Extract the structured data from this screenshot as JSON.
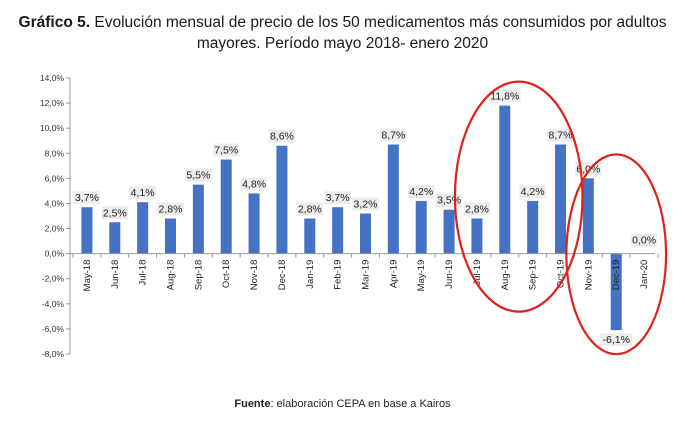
{
  "title_prefix": "Gráfico 5.",
  "title_line1": "Evolución mensual de precio de los 50 medicamentos más consumidos por adultos",
  "title_line2": "mayores. Período mayo 2018- enero 2020",
  "source_prefix": "Fuente",
  "source_text": ": elaboración CEPA en base a Kairos",
  "colors": {
    "bar": "#4472C4",
    "highlight": "#e0201b",
    "label_bg": "#ececec"
  },
  "chart_data": {
    "type": "bar",
    "categories": [
      "May-18",
      "Jun-18",
      "Jul-18",
      "Aug-18",
      "Sep-18",
      "Oct-18",
      "Nov-18",
      "Dec-18",
      "Jan-19",
      "Feb-19",
      "Mar-19",
      "Apr-19",
      "May-19",
      "Jun-19",
      "Jul-19",
      "Aug-19",
      "Sep-19",
      "Oct-19",
      "Nov-19",
      "Dec-19",
      "Jan-20"
    ],
    "values": [
      3.7,
      2.5,
      4.1,
      2.8,
      5.5,
      7.5,
      4.8,
      8.6,
      2.8,
      3.7,
      3.2,
      8.7,
      4.2,
      3.5,
      2.8,
      11.8,
      4.2,
      8.7,
      6.0,
      -6.1,
      0.0
    ],
    "data_labels": [
      "3,7%",
      "2,5%",
      "4,1%",
      "2,8%",
      "5,5%",
      "7,5%",
      "4,8%",
      "8,6%",
      "2,8%",
      "3,7%",
      "3,2%",
      "8,7%",
      "4,2%",
      "3,5%",
      "2,8%",
      "11,8%",
      "4,2%",
      "8,7%",
      "6,0%",
      "-6,1%",
      "0,0%"
    ],
    "yticks": [
      14,
      12,
      10,
      8,
      6,
      4,
      2,
      0,
      -2,
      -4,
      -6,
      -8
    ],
    "ytick_labels": [
      "14,0%",
      "12,0%",
      "10,0%",
      "8,0%",
      "6,0%",
      "4,0%",
      "2,0%",
      "0,0%",
      "-2,0%",
      "-4,0%",
      "-6,0%",
      "-8,0%"
    ],
    "ylim": [
      -8,
      14
    ],
    "grid": false,
    "legend": "none",
    "highlight_groups": [
      [
        "Jul-19",
        "Aug-19",
        "Sep-19",
        "Oct-19"
      ],
      [
        "Nov-19",
        "Dec-19",
        "Jan-20"
      ]
    ]
  }
}
